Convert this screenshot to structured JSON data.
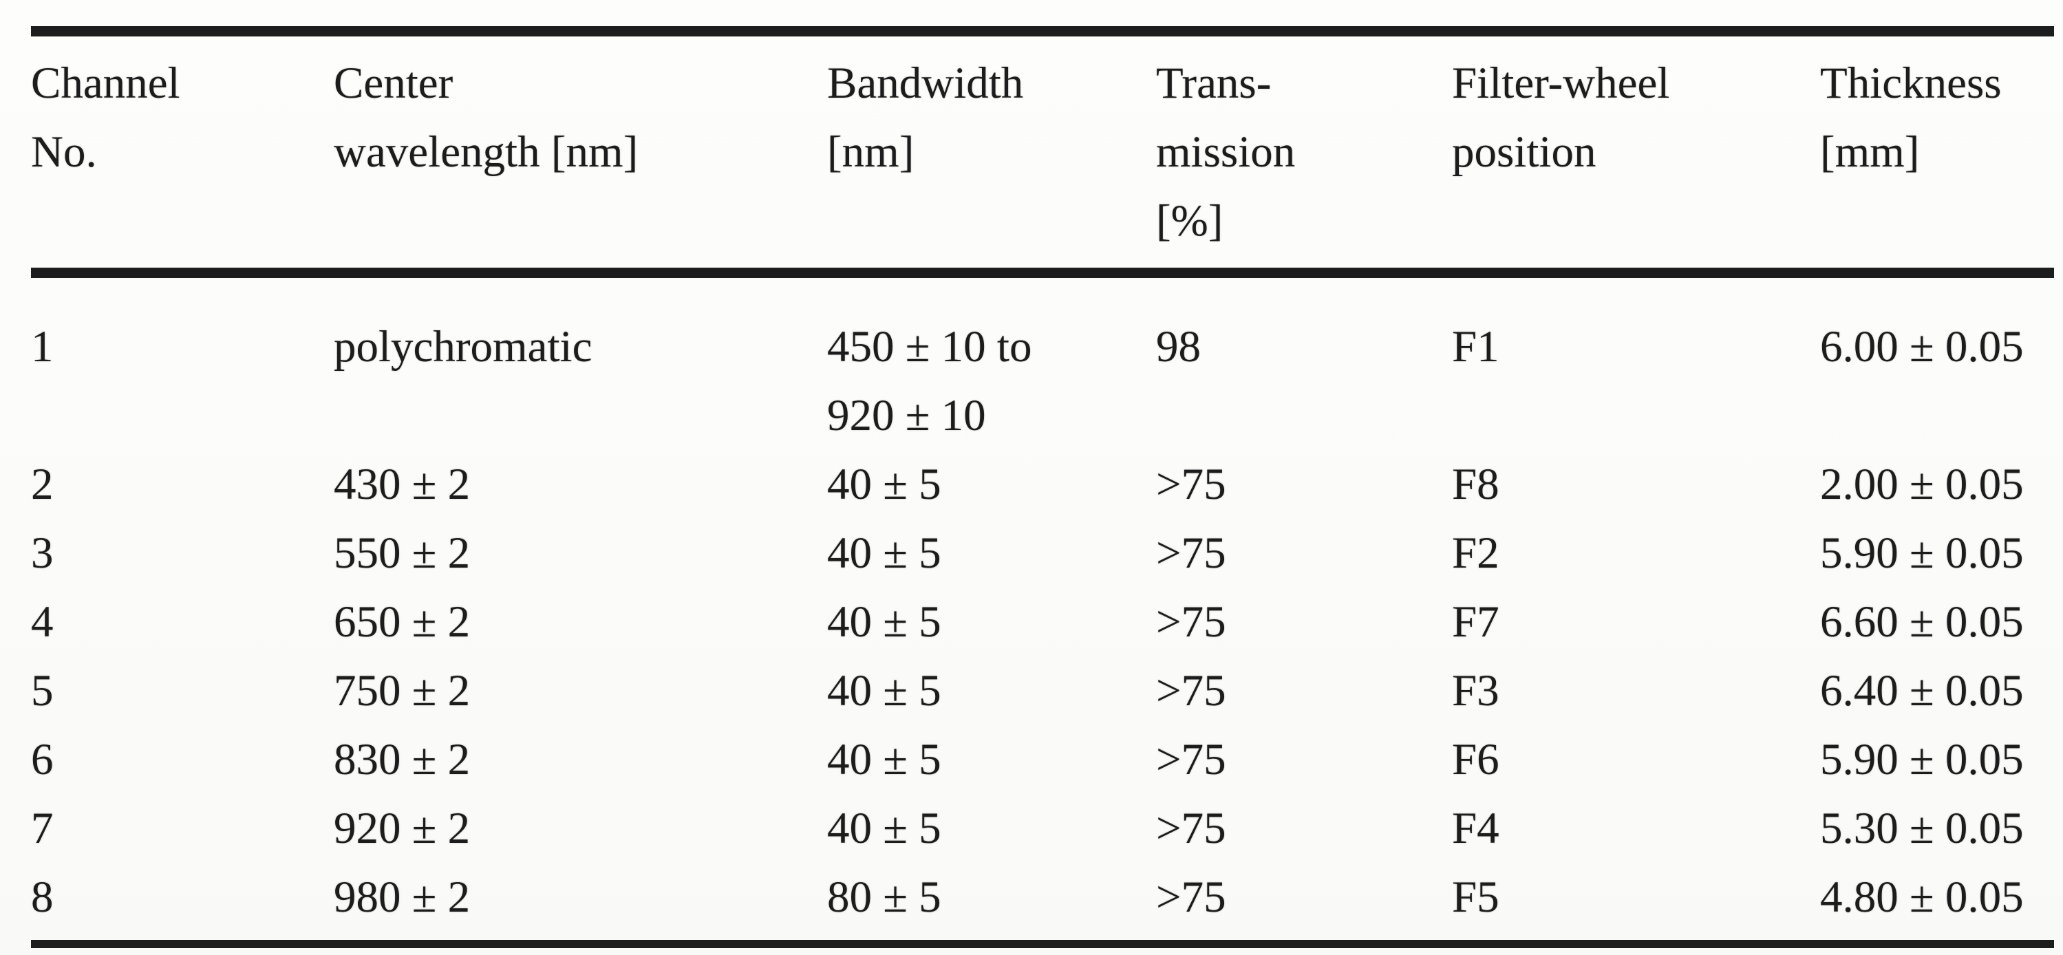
{
  "colors": {
    "rule": "#1d1d1d",
    "text": "#1c1c1c",
    "page_background": "#fbfbf9"
  },
  "table": {
    "headers": [
      "Channel\nNo.",
      "Center\nwavelength [nm]",
      "Bandwidth\n[nm]",
      "Trans-\nmission\n[%]",
      "Filter-wheel\nposition",
      "Thickness\n[mm]"
    ],
    "rows": [
      [
        "1",
        "polychromatic",
        "450 ± 10 to\n920 ± 10",
        "98",
        "F1",
        "6.00 ± 0.05"
      ],
      [
        "2",
        "430 ± 2",
        "40 ± 5",
        ">75",
        "F8",
        "2.00 ± 0.05"
      ],
      [
        "3",
        "550 ± 2",
        "40 ± 5",
        ">75",
        "F2",
        "5.90 ± 0.05"
      ],
      [
        "4",
        "650 ± 2",
        "40 ± 5",
        ">75",
        "F7",
        "6.60 ± 0.05"
      ],
      [
        "5",
        "750 ± 2",
        "40 ± 5",
        ">75",
        "F3",
        "6.40 ± 0.05"
      ],
      [
        "6",
        "830 ± 2",
        "40 ± 5",
        ">75",
        "F6",
        "5.90 ± 0.05"
      ],
      [
        "7",
        "920 ± 2",
        "40 ± 5",
        ">75",
        "F4",
        "5.30 ± 0.05"
      ],
      [
        "8",
        "980 ± 2",
        "80 ± 5",
        ">75",
        "F5",
        "4.80 ± 0.05"
      ]
    ]
  }
}
